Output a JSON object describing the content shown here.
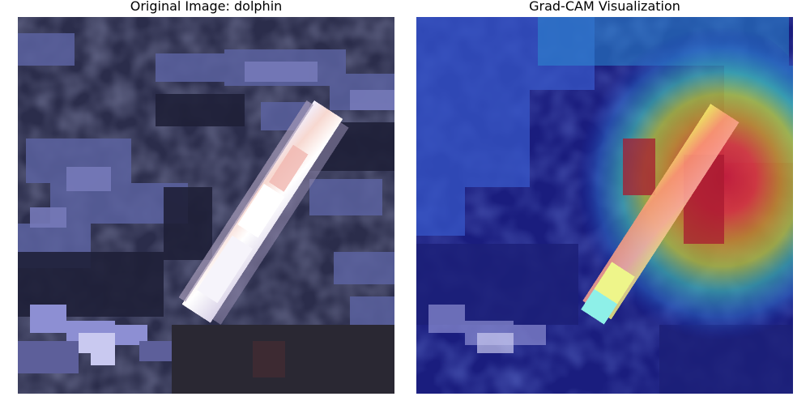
{
  "figure": {
    "left_title": "Original Image: dolphin",
    "right_title": "Grad-CAM Visualization"
  }
}
